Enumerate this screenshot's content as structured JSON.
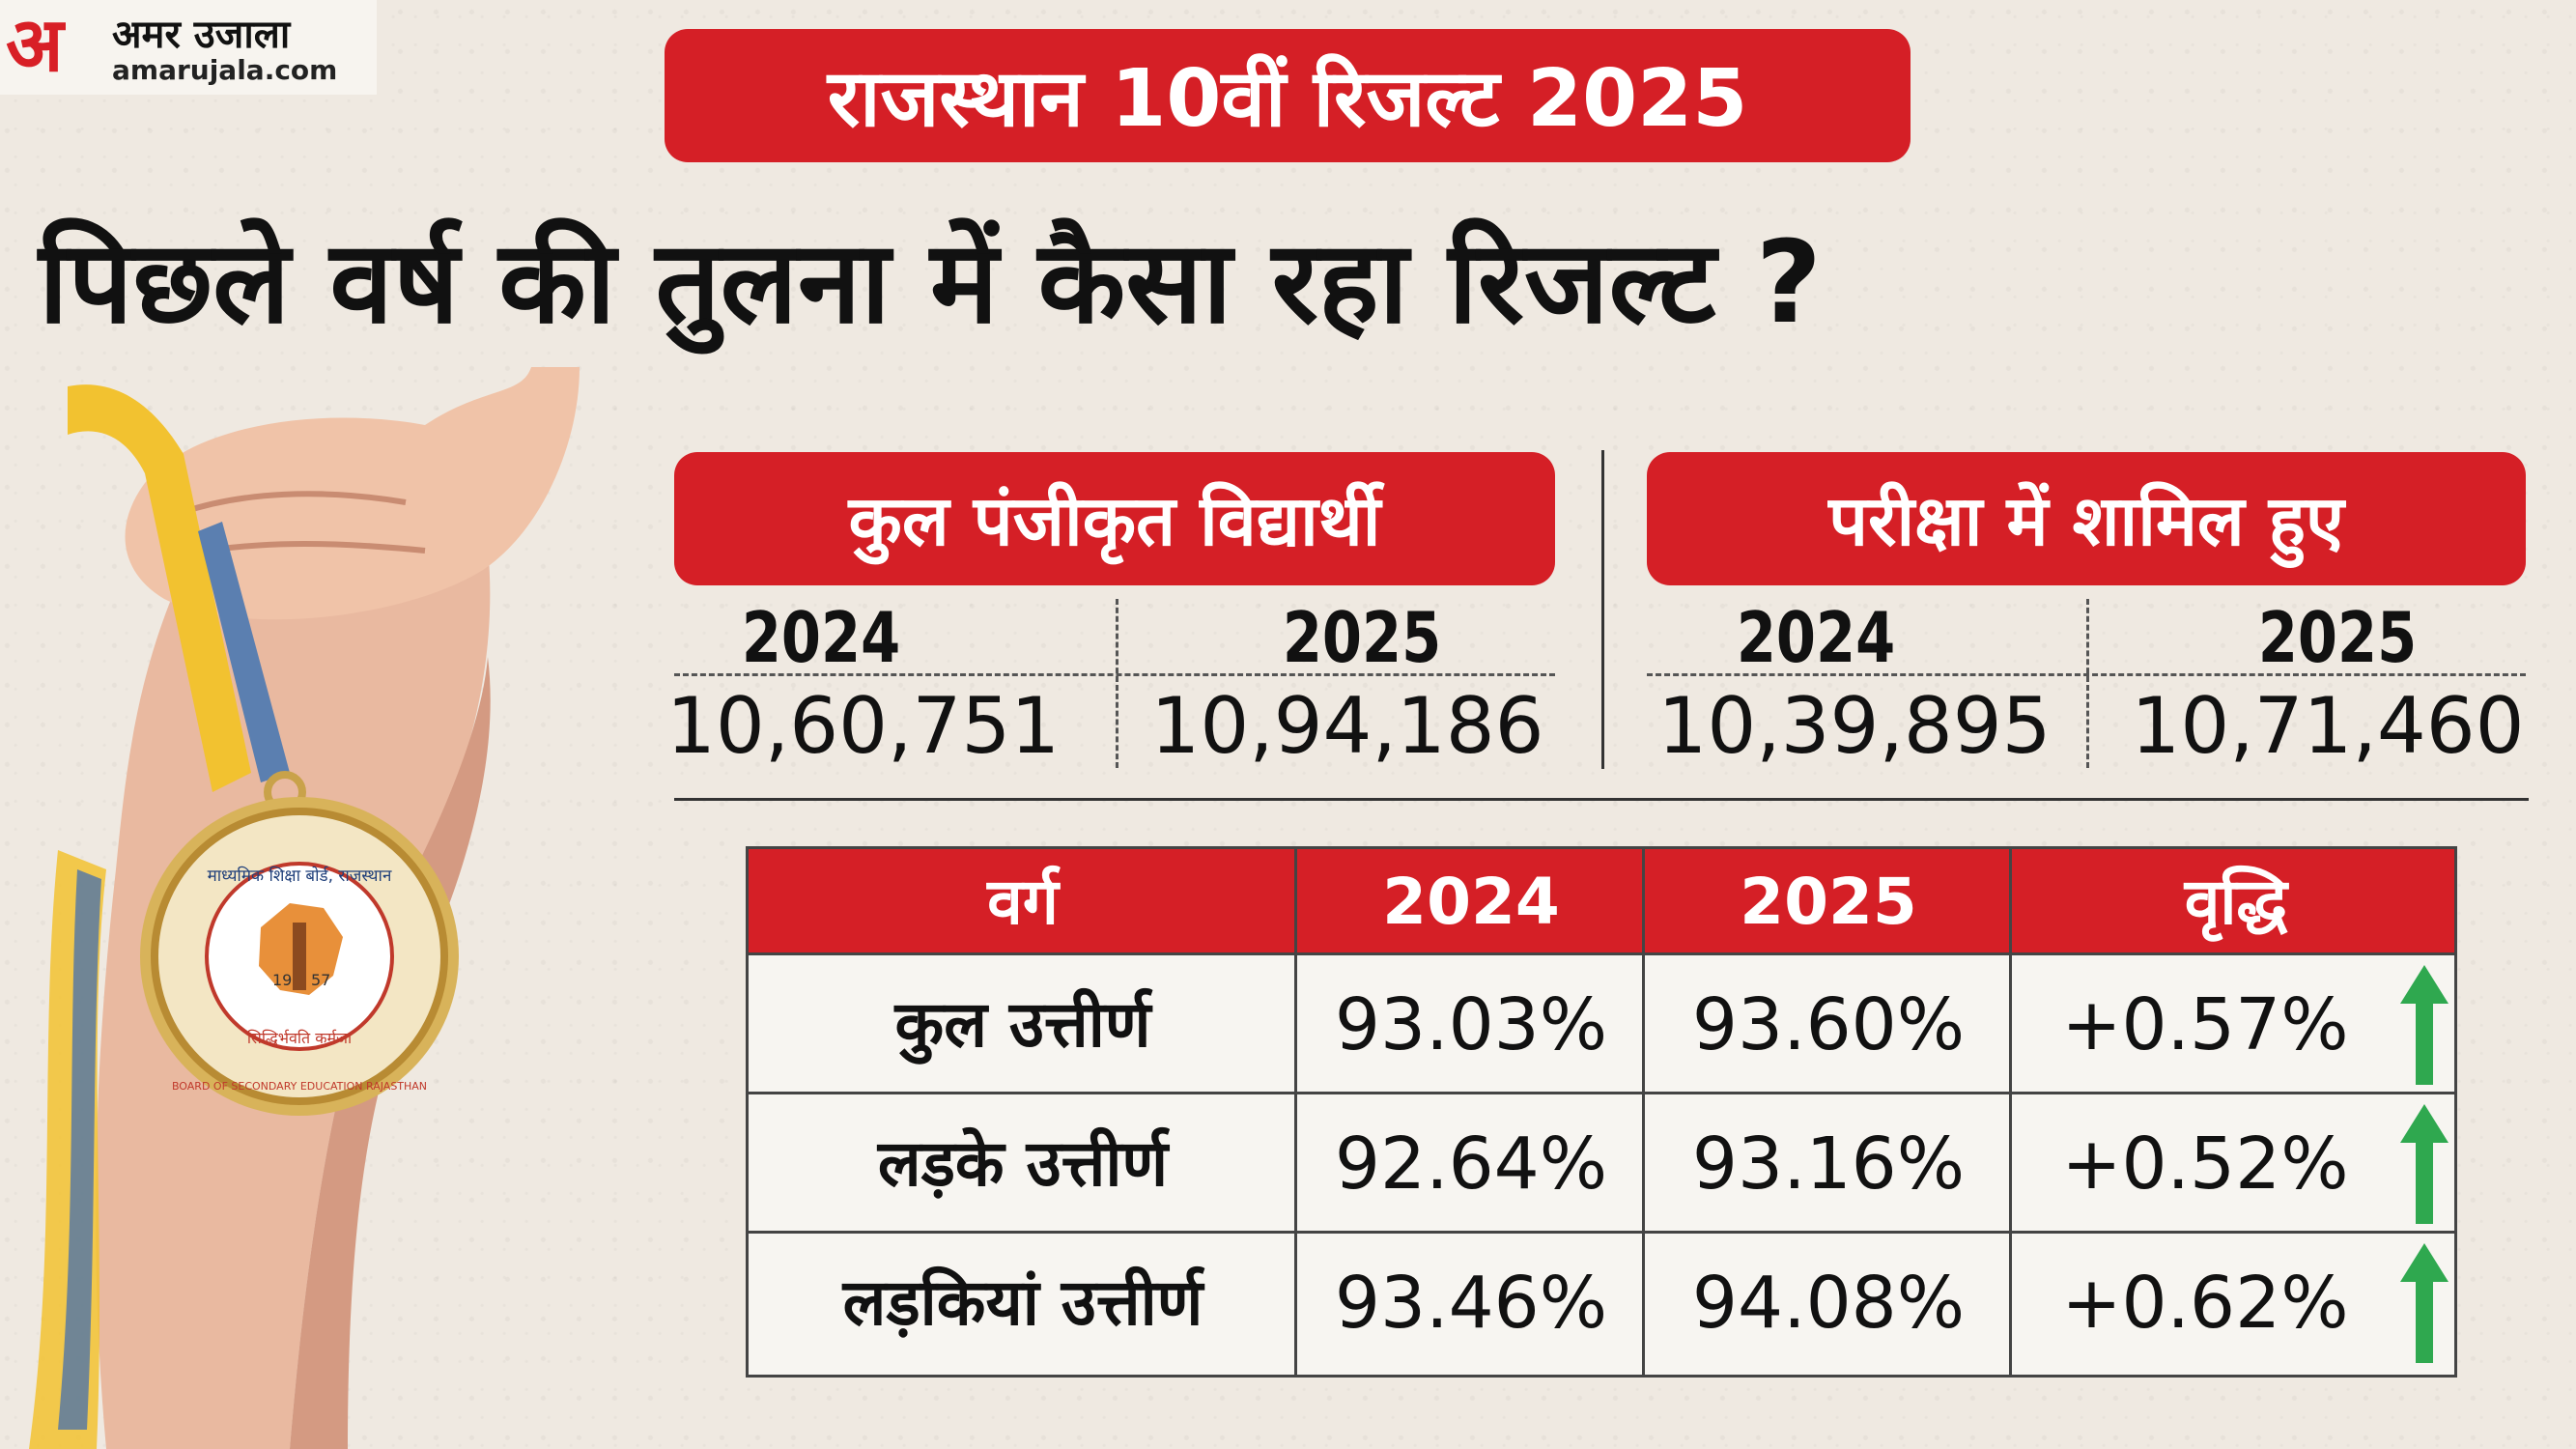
{
  "logo": {
    "mark": "अ",
    "hindi_name": "अमर उजाला",
    "url": "amarujala.com"
  },
  "banner": {
    "title": "राजस्थान 10वीं रिजल्ट 2025"
  },
  "headline": "पिछले वर्ष की तुलना में कैसा रहा रिजल्ट ?",
  "medal": {
    "ring_text": "माध्यमिक शिक्षा बोर्ड, राजस्थान",
    "bottom_text": "BOARD OF SECONDARY EDUCATION RAJASTHAN",
    "motto": "सिद्धिर्भवति कर्मजा",
    "year_left": "19",
    "year_right": "57"
  },
  "stats": {
    "registered": {
      "label": "कुल पंजीकृत विद्यार्थी",
      "year_a": "2024",
      "value_a": "10,60,751",
      "year_b": "2025",
      "value_b": "10,94,186"
    },
    "appeared": {
      "label": "परीक्षा में शामिल हुए",
      "year_a": "2024",
      "value_a": "10,39,895",
      "year_b": "2025",
      "value_b": "10,71,460"
    }
  },
  "chart_data": {
    "type": "table",
    "title": "पिछले वर्ष की तुलना में कैसा रहा रिजल्ट ?",
    "columns": [
      "वर्ग",
      "2024",
      "2025",
      "वृद्धि"
    ],
    "rows": [
      {
        "category": "कुल उत्तीर्ण",
        "y2024": "93.03%",
        "y2025": "93.60%",
        "growth": "+0.57%",
        "trend": "up"
      },
      {
        "category": "लड़के उत्तीर्ण",
        "y2024": "92.64%",
        "y2025": "93.16%",
        "growth": "+0.52%",
        "trend": "up"
      },
      {
        "category": "लड़कियां उत्तीर्ण",
        "y2024": "93.46%",
        "y2025": "94.08%",
        "growth": "+0.62%",
        "trend": "up"
      }
    ]
  },
  "colors": {
    "accent": "#d51f26",
    "arrow": "#2fa84f",
    "background": "#efe9e1"
  }
}
